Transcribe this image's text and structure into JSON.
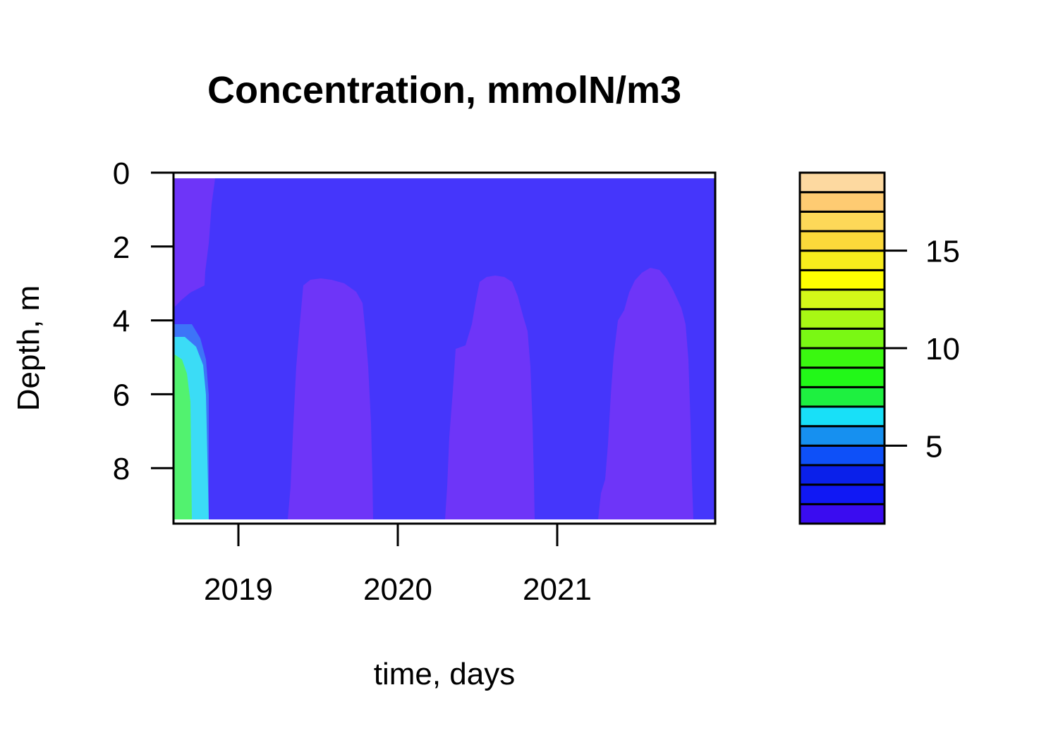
{
  "chart_data": {
    "type": "heatmap",
    "title": "Concentration, mmolN/m3",
    "xlabel": "time, days",
    "ylabel": "Depth, m",
    "x_ticks": [
      "2019",
      "2020",
      "2021"
    ],
    "y_ticks": [
      "0",
      "2",
      "4",
      "6",
      "8"
    ],
    "y_range": [
      0,
      9.5
    ],
    "y_reversed": true,
    "x_range": [
      "2018-08",
      "2021-12"
    ],
    "colorbar": {
      "ticks": [
        "5",
        "10",
        "15"
      ],
      "tick_values": [
        5,
        10,
        15
      ],
      "range": [
        1,
        19
      ],
      "levels": 18,
      "colors": [
        "#3a0cf0",
        "#1018f4",
        "#0a20ea",
        "#0e50f8",
        "#1690f0",
        "#18e0f8",
        "#1ef040",
        "#22f818",
        "#3af810",
        "#7af814",
        "#a8f814",
        "#d4f818",
        "#ffff00",
        "#f8ec1c",
        "#fbd93a",
        "#fdd858",
        "#fecb72",
        "#fdd9a0"
      ]
    },
    "background_color": "#4536fb",
    "regions": [
      {
        "name": "initial-upper",
        "level": 2,
        "color": "#6e35f8"
      },
      {
        "name": "initial-blue",
        "level": 4,
        "color": "#3d74f8"
      },
      {
        "name": "initial-cyan",
        "level": 6,
        "color": "#3bdcf6"
      },
      {
        "name": "initial-green",
        "level": 8,
        "color": "#52f26f"
      },
      {
        "name": "bloom-2019",
        "level": 2,
        "color": "#6e35f8"
      },
      {
        "name": "bloom-2020",
        "level": 2,
        "color": "#6e35f8"
      },
      {
        "name": "bloom-2021",
        "level": 2,
        "color": "#6e35f8"
      }
    ]
  }
}
